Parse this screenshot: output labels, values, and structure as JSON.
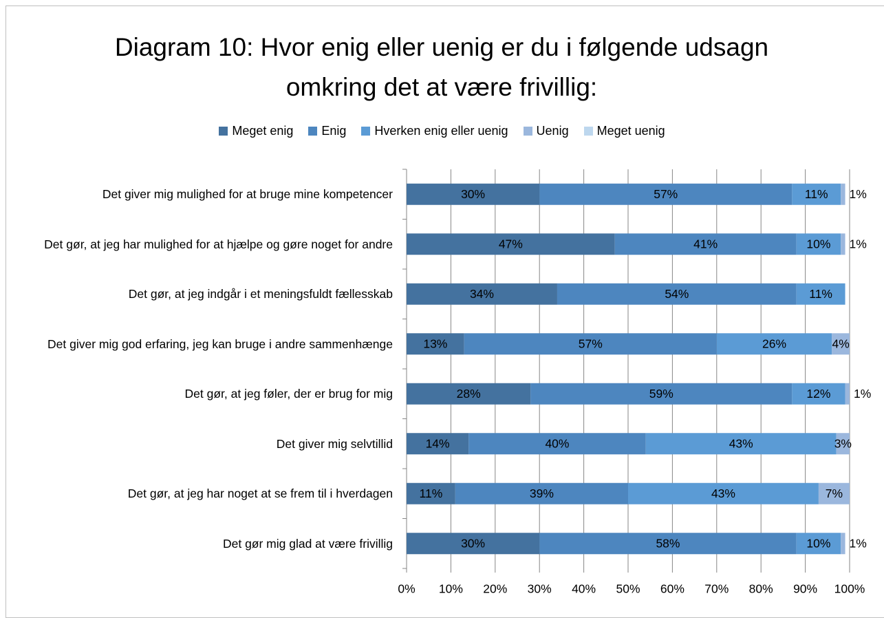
{
  "chart_data": {
    "type": "stacked-barh",
    "title": "Diagram 10: Hvor enig eller uenig er du i følgende udsagn omkring det at være frivillig:",
    "categories": [
      "Det giver mig mulighed for at bruge mine kompetencer",
      "Det gør, at jeg har mulighed for at hjælpe og gøre noget for andre",
      "Det gør, at jeg indgår i et meningsfuldt fællesskab",
      "Det giver mig god erfaring, jeg kan bruge i andre sammenhænge",
      "Det gør, at jeg føler, der er brug for mig",
      "Det giver mig selvtillid",
      "Det gør, at jeg har noget at se frem til i hverdagen",
      "Det gør mig glad at være frivillig"
    ],
    "series": [
      {
        "name": "Meget enig",
        "color": "#44729f",
        "values": [
          30,
          47,
          34,
          13,
          28,
          14,
          11,
          30
        ],
        "value_labels": [
          "30%",
          "47%",
          "34%",
          "13%",
          "28%",
          "14%",
          "11%",
          "30%"
        ]
      },
      {
        "name": "Enig",
        "color": "#4d86bf",
        "values": [
          57,
          41,
          54,
          57,
          59,
          40,
          39,
          58
        ],
        "value_labels": [
          "57%",
          "41%",
          "54%",
          "57%",
          "59%",
          "40%",
          "39%",
          "58%"
        ]
      },
      {
        "name": "Hverken enig eller uenig",
        "color": "#5b9bd5",
        "values": [
          11,
          10,
          11,
          26,
          12,
          43,
          43,
          10
        ],
        "value_labels": [
          "11%",
          "10%",
          "11%",
          "26%",
          "12%",
          "43%",
          "43%",
          "10%"
        ]
      },
      {
        "name": "Uenig",
        "color": "#9bb7dd",
        "values": [
          1,
          1,
          0,
          4,
          1,
          3,
          7,
          1
        ],
        "value_labels": [
          "1%",
          "1%",
          null,
          "4%",
          "1%",
          "3%",
          "7%",
          "1%"
        ]
      },
      {
        "name": "Meget uenig",
        "color": "#bdd7ee",
        "values": [
          0,
          0,
          0,
          0,
          0,
          0,
          0,
          0
        ]
      }
    ],
    "xlim": [
      0,
      100
    ],
    "xticks": [
      {
        "value": 0,
        "label": "0%"
      },
      {
        "value": 10,
        "label": "10%"
      },
      {
        "value": 20,
        "label": "20%"
      },
      {
        "value": 30,
        "label": "30%"
      },
      {
        "value": 40,
        "label": "40%"
      },
      {
        "value": 50,
        "label": "50%"
      },
      {
        "value": 60,
        "label": "60%"
      },
      {
        "value": 70,
        "label": "70%"
      },
      {
        "value": 80,
        "label": "80%"
      },
      {
        "value": 90,
        "label": "90%"
      },
      {
        "value": 100,
        "label": "100%"
      }
    ],
    "grid": true,
    "legend": "top"
  }
}
